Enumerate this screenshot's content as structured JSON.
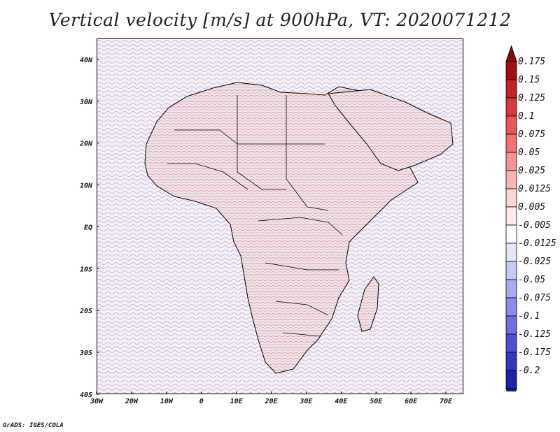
{
  "title": "Vertical velocity [m/s] at 900hPa, VT: 2020071212",
  "footer": "GrADS: IGES/COLA",
  "map": {
    "lon_range": [
      -30,
      75
    ],
    "lat_range": [
      -40,
      45
    ],
    "lon_ticks": [
      {
        "value": -30,
        "label": "30W"
      },
      {
        "value": -20,
        "label": "20W"
      },
      {
        "value": -10,
        "label": "10W"
      },
      {
        "value": 0,
        "label": "0"
      },
      {
        "value": 10,
        "label": "10E"
      },
      {
        "value": 20,
        "label": "20E"
      },
      {
        "value": 30,
        "label": "30E"
      },
      {
        "value": 40,
        "label": "40E"
      },
      {
        "value": 50,
        "label": "50E"
      },
      {
        "value": 60,
        "label": "60E"
      },
      {
        "value": 70,
        "label": "70E"
      }
    ],
    "lat_ticks": [
      {
        "value": 40,
        "label": "40N"
      },
      {
        "value": 30,
        "label": "30N"
      },
      {
        "value": 20,
        "label": "20N"
      },
      {
        "value": 10,
        "label": "10N"
      },
      {
        "value": 0,
        "label": "EQ"
      },
      {
        "value": -10,
        "label": "10S"
      },
      {
        "value": -20,
        "label": "20S"
      },
      {
        "value": -30,
        "label": "30S"
      },
      {
        "value": -40,
        "label": "40S"
      }
    ]
  },
  "colorbar": {
    "levels": [
      {
        "label": "0.175",
        "color": "#a01010"
      },
      {
        "label": "0.15",
        "color": "#c02424"
      },
      {
        "label": "0.125",
        "color": "#d63a3a"
      },
      {
        "label": "0.1",
        "color": "#e85656"
      },
      {
        "label": "0.075",
        "color": "#f07272"
      },
      {
        "label": "0.05",
        "color": "#f59494"
      },
      {
        "label": "0.025",
        "color": "#f9b4b4"
      },
      {
        "label": "0.0125",
        "color": "#fcd4d4"
      },
      {
        "label": "0.005",
        "color": "#feeaea"
      },
      {
        "label": "-0.005",
        "color": "#ffffff"
      },
      {
        "label": "-0.0125",
        "color": "#e4e4fa"
      },
      {
        "label": "-0.025",
        "color": "#c8c8f4"
      },
      {
        "label": "-0.05",
        "color": "#aaaaee"
      },
      {
        "label": "-0.075",
        "color": "#8c8ce6"
      },
      {
        "label": "-0.1",
        "color": "#6e6edc"
      },
      {
        "label": "-0.125",
        "color": "#5050d0"
      },
      {
        "label": "-0.175",
        "color": "#3434c0"
      },
      {
        "label": "-0.2",
        "color": "#2020a8"
      }
    ],
    "top_color": "#8a0a0a",
    "bottom_color": "#18189a"
  },
  "colors": {
    "ascent": "#e06060",
    "descent": "#6060e0",
    "neutral": "#ffffff",
    "coast": "#000000"
  }
}
